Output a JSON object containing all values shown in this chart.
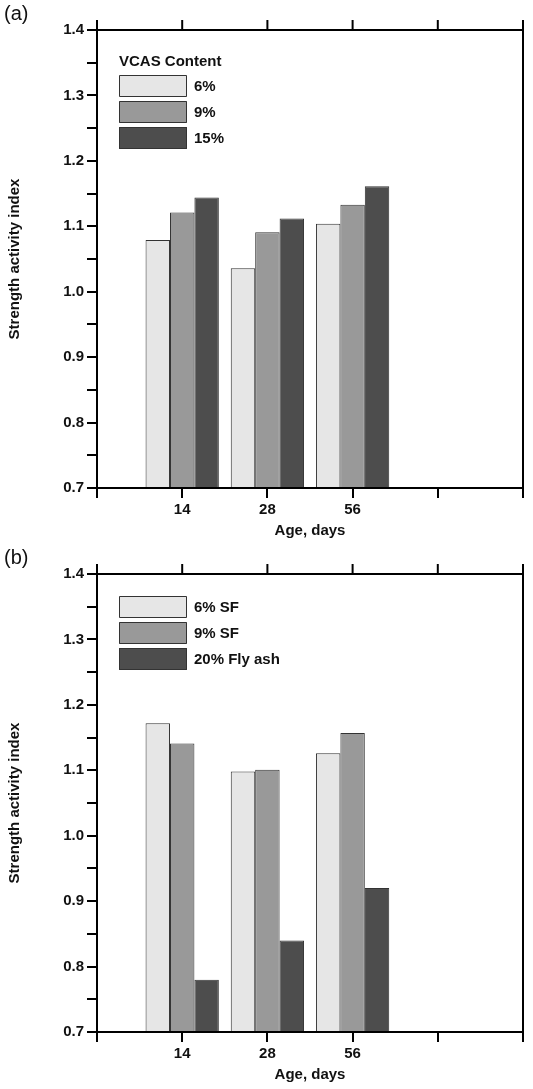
{
  "chart_data": [
    {
      "type": "bar",
      "title": "(a)",
      "xlabel": "Age, days",
      "ylabel": "Strength activity index",
      "legend_title": "VCAS Content",
      "legend": "top left",
      "grid": false,
      "categories": [
        null,
        "14",
        "28",
        "56",
        null,
        null
      ],
      "series": [
        {
          "name": "6%",
          "color": "#e6e6e6",
          "values": [
            null,
            1.079,
            1.036,
            1.104,
            null,
            null
          ]
        },
        {
          "name": "9%",
          "color": "#999999",
          "values": [
            null,
            1.121,
            1.091,
            1.133,
            null,
            null
          ]
        },
        {
          "name": "15%",
          "color": "#4d4d4d",
          "values": [
            null,
            1.144,
            1.112,
            1.161,
            null,
            null
          ]
        }
      ],
      "ylim": [
        0.7,
        1.4
      ],
      "yticks": [
        0.7,
        {
          "value": 0.75,
          "label": null
        },
        0.8,
        {
          "value": 0.85,
          "label": null
        },
        0.9,
        {
          "value": 0.95,
          "label": null
        },
        {
          "value": 1,
          "label": "1.0"
        },
        {
          "value": 1.05,
          "label": null
        },
        1.1,
        {
          "value": 1.15,
          "label": null
        },
        1.2,
        {
          "value": 1.25,
          "label": null
        },
        1.3,
        {
          "value": 1.35,
          "label": null
        },
        1.4
      ]
    },
    {
      "type": "bar",
      "title": "(b)",
      "xlabel": "Age, days",
      "ylabel": "Strength activity index",
      "legend": "top left",
      "grid": false,
      "categories": [
        null,
        "14",
        "28",
        "56",
        null,
        null
      ],
      "series": [
        {
          "name": "6% SF",
          "color": "#e6e6e6",
          "values": [
            null,
            1.172,
            1.098,
            1.126,
            null,
            null
          ]
        },
        {
          "name": "9% SF",
          "color": "#999999",
          "values": [
            null,
            1.141,
            1.101,
            1.157,
            null,
            null
          ]
        },
        {
          "name": "20% Fly ash",
          "color": "#4d4d4d",
          "values": [
            null,
            0.78,
            0.84,
            0.92,
            null,
            null
          ]
        }
      ],
      "ylim": [
        0.7,
        1.4
      ],
      "yticks": [
        0.7,
        {
          "value": 0.75,
          "label": null
        },
        0.8,
        {
          "value": 0.85,
          "label": null
        },
        0.9,
        {
          "value": 0.95,
          "label": null
        },
        {
          "value": 1,
          "label": "1.0"
        },
        {
          "value": 1.05,
          "label": null
        },
        1.1,
        {
          "value": 1.15,
          "label": null
        },
        1.2,
        {
          "value": 1.25,
          "label": null
        },
        1.3,
        {
          "value": 1.35,
          "label": null
        },
        1.4
      ]
    }
  ]
}
